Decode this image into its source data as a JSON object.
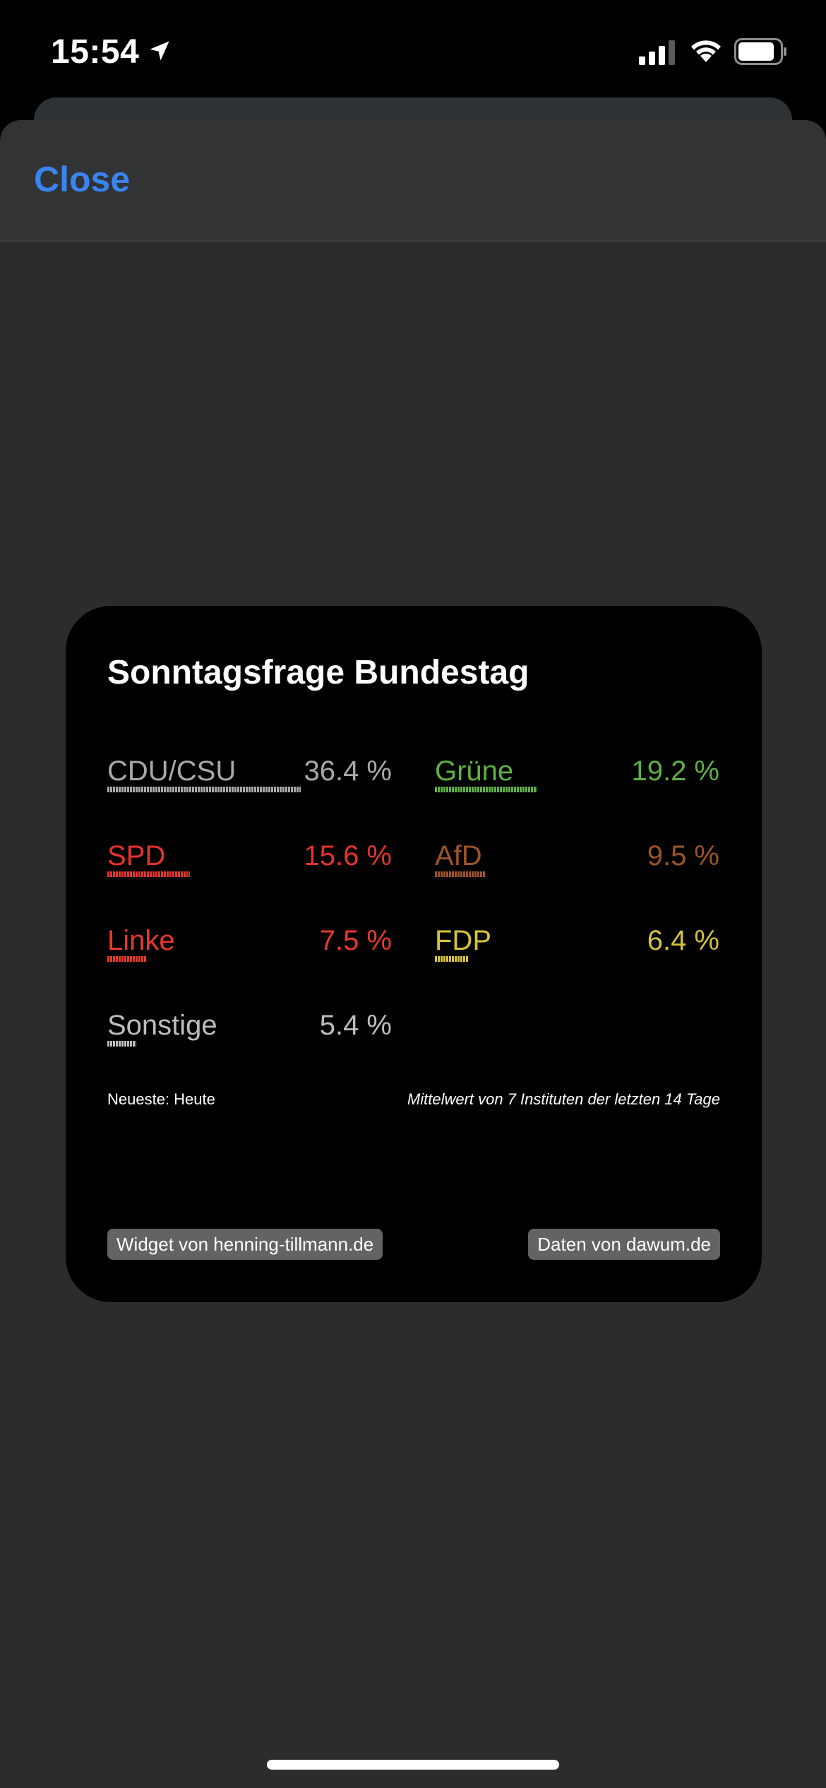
{
  "status_bar": {
    "time": "15:54"
  },
  "nav": {
    "close_label": "Close"
  },
  "widget": {
    "title": "Sonntagsfrage Bundestag",
    "parties": [
      {
        "name": "CDU/CSU",
        "value": "36.4 %",
        "percent": 36.4,
        "color": "#a9a9a9"
      },
      {
        "name": "Grüne",
        "value": "19.2 %",
        "percent": 19.2,
        "color": "#5fb043"
      },
      {
        "name": "SPD",
        "value": "15.6 %",
        "percent": 15.6,
        "color": "#e3342f"
      },
      {
        "name": "AfD",
        "value": "9.5 %",
        "percent": 9.5,
        "color": "#9c5427"
      },
      {
        "name": "Linke",
        "value": "7.5 %",
        "percent": 7.5,
        "color": "#e8392a"
      },
      {
        "name": "FDP",
        "value": "6.4 %",
        "percent": 6.4,
        "color": "#d6c33c"
      },
      {
        "name": "Sonstige",
        "value": "5.4 %",
        "percent": 5.4,
        "color": "#bdbdbd"
      }
    ],
    "newest_label": "Neueste: Heute",
    "average_label": "Mittelwert von 7 Instituten der letzten 14 Tage",
    "credit_widget": "Widget von henning-tillmann.de",
    "credit_data": "Daten von dawum.de"
  },
  "colors": {
    "accent": "#3a84f0",
    "sheet_background": "#2c2c2e",
    "widget_background": "#000000"
  }
}
